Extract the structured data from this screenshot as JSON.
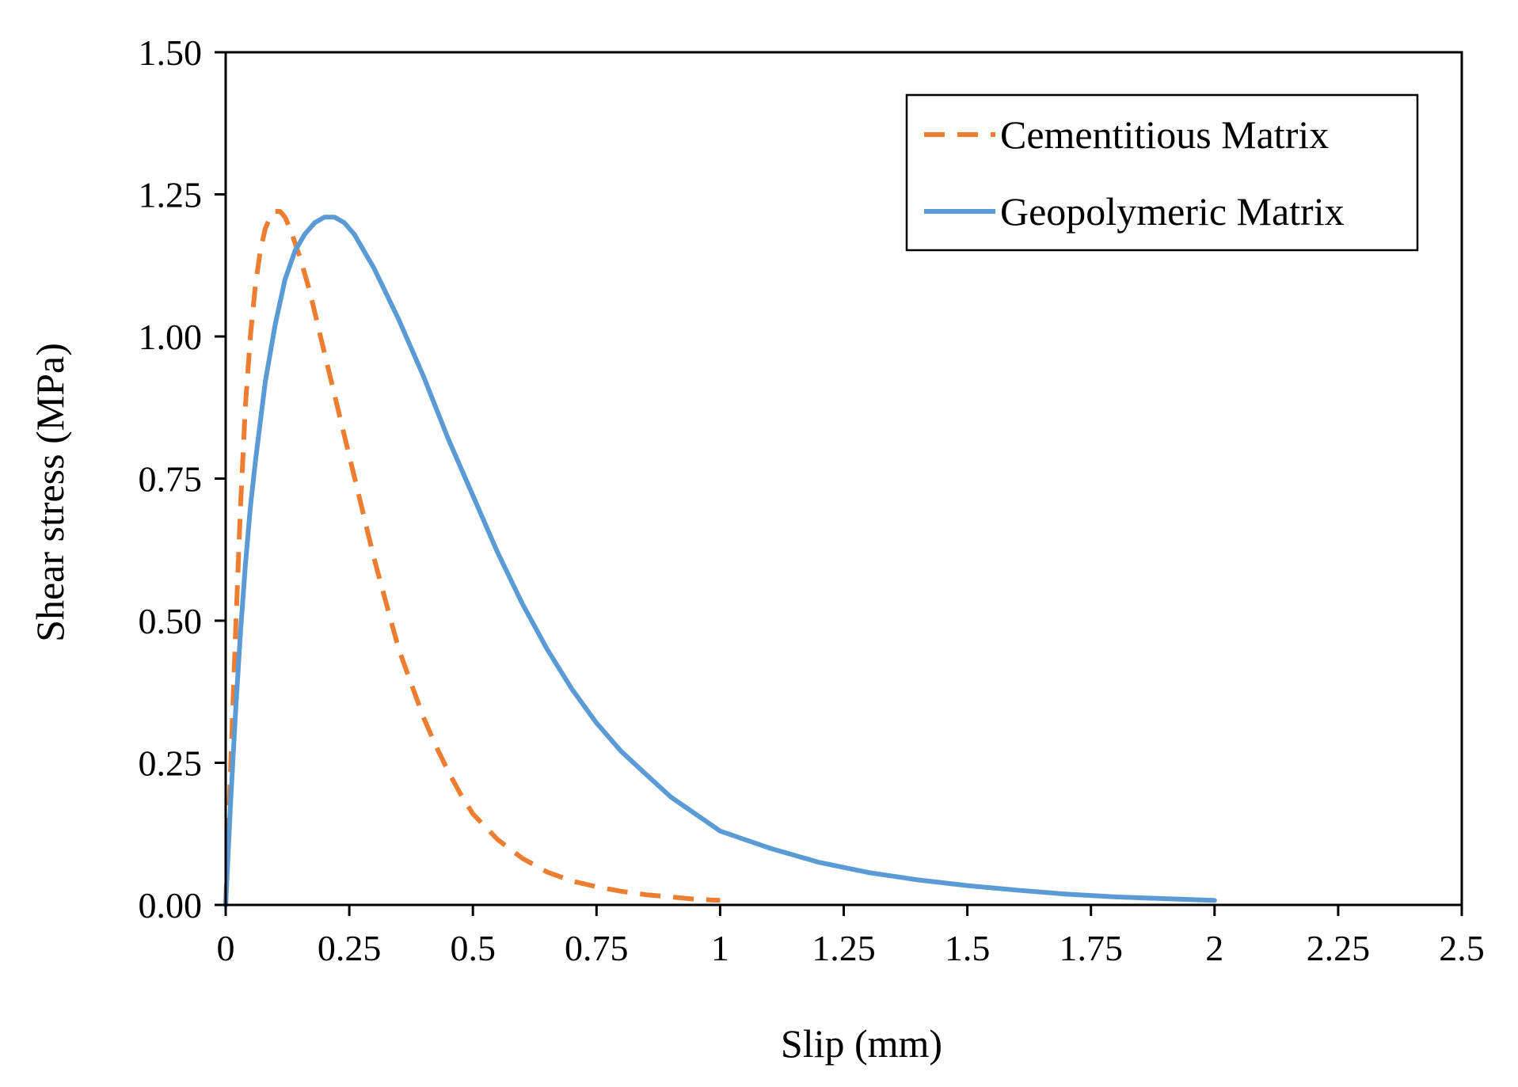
{
  "chart_data": {
    "type": "line",
    "title": "",
    "xlabel": "Slip (mm)",
    "ylabel": "Shear stress (MPa)",
    "xlim": [
      0,
      2.5
    ],
    "ylim": [
      0,
      1.5
    ],
    "x_ticks": [
      0,
      0.25,
      0.5,
      0.75,
      1,
      1.25,
      1.5,
      1.75,
      2,
      2.25,
      2.5
    ],
    "x_tick_labels": [
      "0",
      "0.25",
      "0.5",
      "0.75",
      "1",
      "1.25",
      "1.5",
      "1.75",
      "2",
      "2.25",
      "2.5"
    ],
    "y_ticks": [
      0,
      0.25,
      0.5,
      0.75,
      1.0,
      1.25,
      1.5
    ],
    "y_tick_labels": [
      "0.00",
      "0.25",
      "0.50",
      "0.75",
      "1.00",
      "1.25",
      "1.50"
    ],
    "grid": false,
    "legend_position": "top-right",
    "series": [
      {
        "name": "Cementitious Matrix",
        "color": "#ED7D31",
        "style": "dashed",
        "x": [
          0,
          0.005,
          0.01,
          0.02,
          0.03,
          0.04,
          0.05,
          0.06,
          0.07,
          0.08,
          0.09,
          0.1,
          0.11,
          0.12,
          0.13,
          0.15,
          0.17,
          0.2,
          0.225,
          0.25,
          0.275,
          0.3,
          0.325,
          0.35,
          0.375,
          0.4,
          0.425,
          0.45,
          0.475,
          0.5,
          0.55,
          0.6,
          0.65,
          0.7,
          0.75,
          0.8,
          0.85,
          0.9,
          0.95,
          1.0
        ],
        "y": [
          0.0,
          0.12,
          0.24,
          0.48,
          0.7,
          0.88,
          1.0,
          1.09,
          1.15,
          1.19,
          1.21,
          1.22,
          1.22,
          1.21,
          1.19,
          1.14,
          1.08,
          0.97,
          0.88,
          0.79,
          0.7,
          0.61,
          0.53,
          0.45,
          0.39,
          0.33,
          0.28,
          0.235,
          0.195,
          0.16,
          0.115,
          0.082,
          0.058,
          0.042,
          0.032,
          0.024,
          0.018,
          0.014,
          0.01,
          0.008
        ]
      },
      {
        "name": "Geopolymeric Matrix",
        "color": "#5B9BD5",
        "style": "solid",
        "x": [
          0,
          0.01,
          0.02,
          0.03,
          0.04,
          0.05,
          0.06,
          0.08,
          0.1,
          0.12,
          0.14,
          0.16,
          0.18,
          0.2,
          0.22,
          0.24,
          0.26,
          0.3,
          0.35,
          0.4,
          0.45,
          0.5,
          0.55,
          0.6,
          0.65,
          0.7,
          0.75,
          0.8,
          0.85,
          0.9,
          0.95,
          1.0,
          1.1,
          1.2,
          1.3,
          1.4,
          1.5,
          1.6,
          1.7,
          1.8,
          1.9,
          2.0
        ],
        "y": [
          0.0,
          0.18,
          0.34,
          0.48,
          0.6,
          0.7,
          0.78,
          0.92,
          1.02,
          1.1,
          1.15,
          1.18,
          1.2,
          1.21,
          1.21,
          1.2,
          1.18,
          1.12,
          1.03,
          0.93,
          0.82,
          0.72,
          0.62,
          0.53,
          0.45,
          0.38,
          0.32,
          0.27,
          0.23,
          0.19,
          0.16,
          0.13,
          0.1,
          0.075,
          0.057,
          0.044,
          0.034,
          0.026,
          0.019,
          0.014,
          0.011,
          0.008
        ]
      }
    ]
  }
}
